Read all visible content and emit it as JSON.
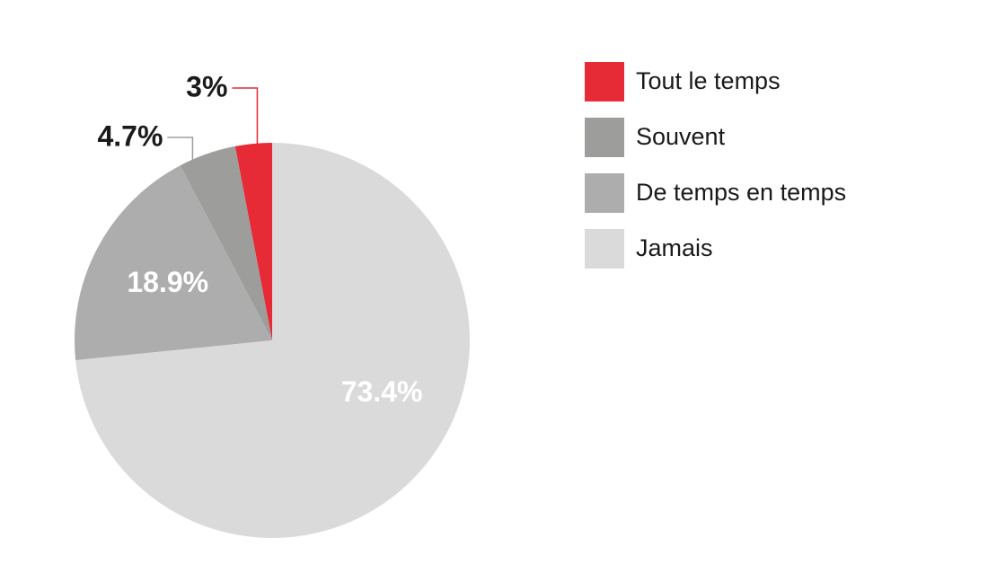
{
  "chart_data": {
    "type": "pie",
    "categories": [
      "Tout le temps",
      "Souvent",
      "De temps en temps",
      "Jamais"
    ],
    "values": [
      3,
      4.7,
      18.9,
      73.4
    ],
    "value_labels": [
      "3%",
      "4.7%",
      "18.9%",
      "73.4%"
    ],
    "colors": [
      "#e62b36",
      "#9d9d9b",
      "#adadad",
      "#dadada"
    ],
    "legend": "right"
  }
}
